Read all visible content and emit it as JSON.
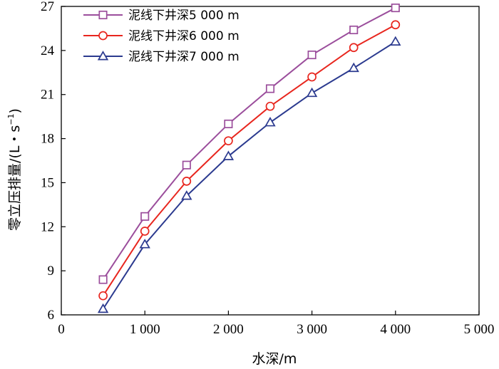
{
  "chart_data": {
    "type": "line",
    "xlabel": "水深/m",
    "ylabel_main": "零立压排量/(L・s",
    "ylabel_sup": "−1",
    "ylabel_close": ")",
    "xlim": [
      0,
      5000
    ],
    "ylim": [
      6,
      27
    ],
    "x_ticks": [
      0,
      1000,
      2000,
      3000,
      4000,
      5000
    ],
    "x_tick_labels": [
      "0",
      "1 000",
      "2 000",
      "3 000",
      "4 000",
      "5 000"
    ],
    "y_ticks": [
      6,
      9,
      12,
      15,
      18,
      21,
      24,
      27
    ],
    "y_tick_labels": [
      "6",
      "9",
      "12",
      "15",
      "18",
      "21",
      "24",
      "27"
    ],
    "legend_position": "top-left",
    "x": [
      500,
      1000,
      1500,
      2000,
      2500,
      3000,
      3500,
      4000
    ],
    "series": [
      {
        "name": "泥线下井深5 000 m",
        "marker": "square",
        "color": "#9b4e9c",
        "values": [
          8.4,
          12.7,
          16.2,
          19.0,
          21.4,
          23.7,
          25.4,
          26.9
        ]
      },
      {
        "name": "泥线下井深6 000 m",
        "marker": "circle",
        "color": "#e8261e",
        "values": [
          7.3,
          11.7,
          15.1,
          17.85,
          20.2,
          22.2,
          24.2,
          25.75
        ]
      },
      {
        "name": "泥线下井深7 000 m",
        "marker": "triangle",
        "color": "#2b3a8f",
        "values": [
          6.4,
          10.8,
          14.1,
          16.8,
          19.1,
          21.1,
          22.8,
          24.6
        ]
      }
    ]
  }
}
